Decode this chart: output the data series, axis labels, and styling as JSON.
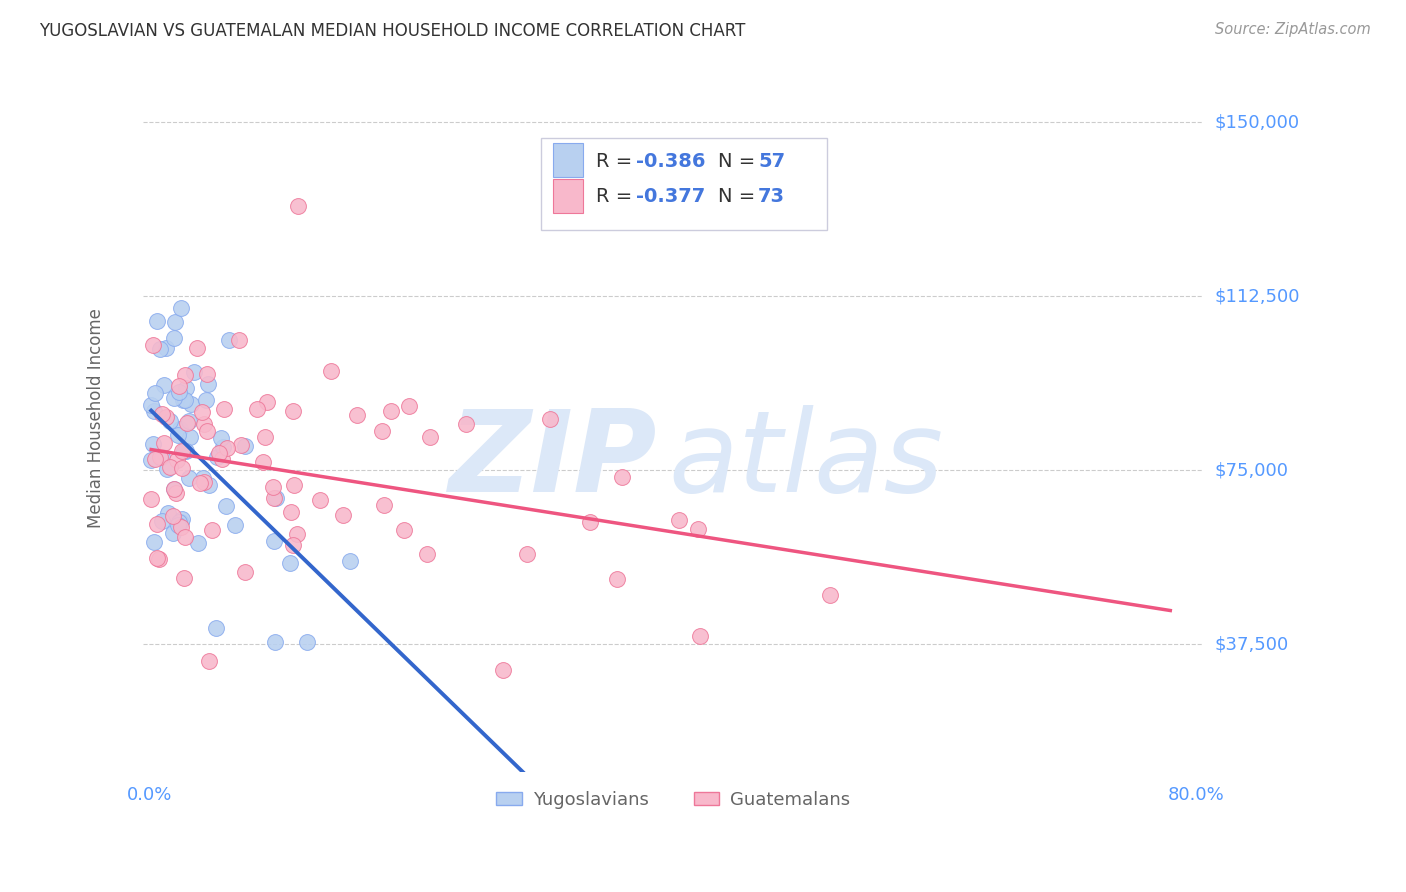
{
  "title": "YUGOSLAVIAN VS GUATEMALAN MEDIAN HOUSEHOLD INCOME CORRELATION CHART",
  "source": "Source: ZipAtlas.com",
  "ylabel": "Median Household Income",
  "xlim": [
    -0.005,
    0.805
  ],
  "ylim": [
    10000,
    162500
  ],
  "yticks": [
    37500,
    75000,
    112500,
    150000
  ],
  "ytick_labels": [
    "$37,500",
    "$75,000",
    "$112,500",
    "$150,000"
  ],
  "background_color": "#ffffff",
  "grid_color": "#cccccc",
  "title_color": "#333333",
  "axis_label_color": "#666666",
  "ytick_color": "#5599ff",
  "xtick_color": "#5599ff",
  "source_color": "#999999",
  "series1_name": "Yugoslavians",
  "series1_color": "#b8d0f0",
  "series1_edge_color": "#88aaee",
  "series1_R": -0.386,
  "series1_N": 57,
  "series1_line_color": "#3366cc",
  "series2_name": "Guatemalans",
  "series2_color": "#f8b8cb",
  "series2_edge_color": "#ee7799",
  "series2_R": -0.377,
  "series2_N": 73,
  "series2_line_color": "#ee5580",
  "legend_color": "#4477dd",
  "watermark_color": "#dce8f8",
  "dashed_line_color": "#99bbdd"
}
